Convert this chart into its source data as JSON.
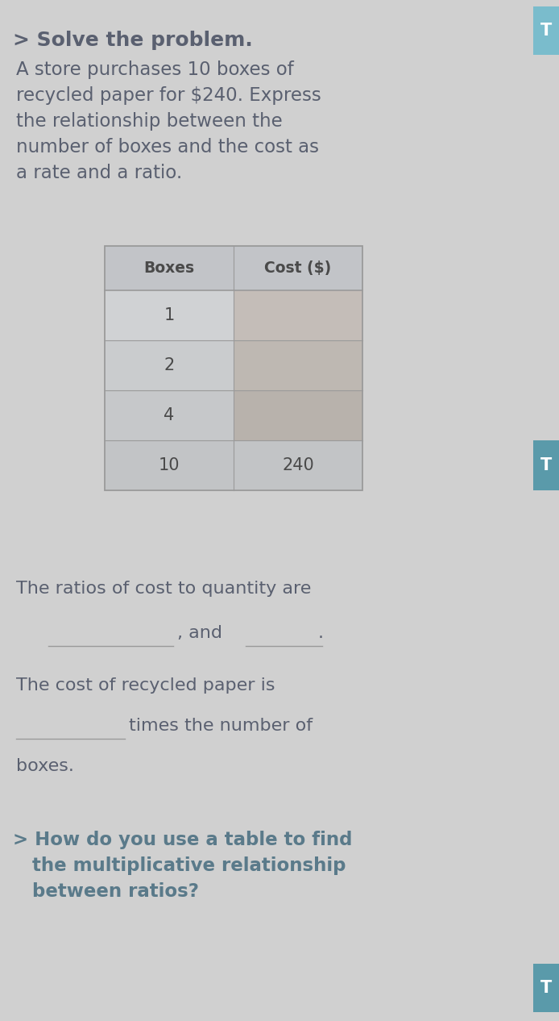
{
  "bg_color": "#d0d0d0",
  "title_text": "> Solve the problem.",
  "title_color": "#5a6070",
  "para_text": "A store purchases 10 boxes of\nrecycled paper for $240. Express\nthe relationship between the\nnumber of boxes and the cost as\na rate and a ratio.",
  "para_color": "#5a6070",
  "table_header": [
    "Boxes",
    "Cost ($)"
  ],
  "table_rows": [
    [
      "1",
      ""
    ],
    [
      "2",
      ""
    ],
    [
      "4",
      ""
    ],
    [
      "10",
      "240"
    ]
  ],
  "table_header_bg": "#c2c4c8",
  "table_left_bg": [
    "#d0d2d4",
    "#caccce",
    "#c6c8ca",
    "#c2c4c6"
  ],
  "table_right_blank_bg": [
    "#c4bdb8",
    "#beb8b2",
    "#b8b2ac",
    "#c2c4c6"
  ],
  "table_text_color": "#4a4a4a",
  "table_border_color": "#9a9a9a",
  "ans1": "The ratios of cost to quantity are",
  "ans2_pre": "            , and             .",
  "ans3": "The cost of recycled paper is",
  "ans4": "         times the number of",
  "ans5": "boxes.",
  "ans_color": "#5a6070",
  "q_text": "> How do you use a table to find\n   the multiplicative relationship\n   between ratios?",
  "q_color": "#5a7a8a",
  "tab1_color": "#7abccc",
  "tab2_color": "#5a9aaa",
  "tab_text": "T",
  "tab_text_color": "#ffffff",
  "underline_color": "#9a9a9a"
}
